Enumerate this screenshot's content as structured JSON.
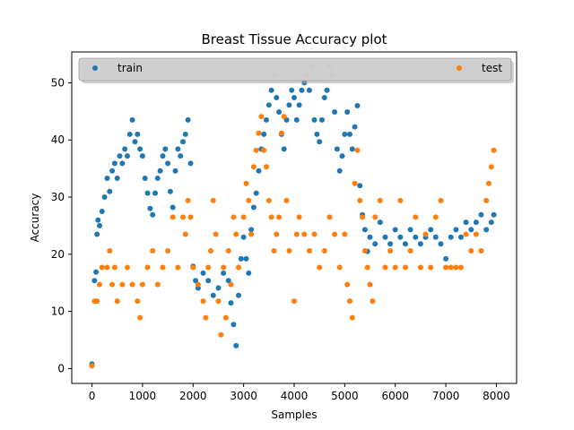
{
  "chart_data": {
    "type": "scatter",
    "title": "Breast Tissue Accuracy plot",
    "xlabel": "Samples",
    "ylabel": "Accuracy",
    "xlim": [
      -400,
      8400
    ],
    "ylim": [
      -2.6,
      55.4
    ],
    "xticks": [
      0,
      1000,
      2000,
      3000,
      4000,
      5000,
      6000,
      7000,
      8000
    ],
    "yticks": [
      0,
      10,
      20,
      30,
      40,
      50
    ],
    "legend": {
      "placement": "top",
      "entries": [
        "train",
        "test"
      ]
    },
    "grid": false,
    "series": [
      {
        "name": "train",
        "color": "#1f77b4",
        "points": [
          [
            0,
            0.8
          ],
          [
            0,
            0.5
          ],
          [
            50,
            15.4
          ],
          [
            80,
            16.9
          ],
          [
            100,
            23.5
          ],
          [
            120,
            26
          ],
          [
            150,
            25
          ],
          [
            200,
            27.5
          ],
          [
            250,
            30
          ],
          [
            300,
            33.3
          ],
          [
            350,
            31
          ],
          [
            400,
            34.6
          ],
          [
            450,
            35.9
          ],
          [
            500,
            33.3
          ],
          [
            550,
            37.2
          ],
          [
            600,
            35.9
          ],
          [
            650,
            38.4
          ],
          [
            700,
            37.2
          ],
          [
            750,
            41
          ],
          [
            800,
            43.5
          ],
          [
            850,
            39.7
          ],
          [
            900,
            41
          ],
          [
            950,
            38.4
          ],
          [
            1000,
            37.2
          ],
          [
            1050,
            33.3
          ],
          [
            1100,
            30.7
          ],
          [
            1150,
            28
          ],
          [
            1200,
            26.9
          ],
          [
            1250,
            30.7
          ],
          [
            1300,
            33.3
          ],
          [
            1350,
            34.6
          ],
          [
            1400,
            37.2
          ],
          [
            1450,
            38.4
          ],
          [
            1500,
            35.9
          ],
          [
            1550,
            31
          ],
          [
            1600,
            28.2
          ],
          [
            1650,
            34.6
          ],
          [
            1700,
            38.4
          ],
          [
            1750,
            37.2
          ],
          [
            1800,
            39.7
          ],
          [
            1850,
            41
          ],
          [
            1900,
            43.5
          ],
          [
            1950,
            35.9
          ],
          [
            2000,
            17.9
          ],
          [
            2050,
            15.4
          ],
          [
            2100,
            14.1
          ],
          [
            2200,
            16.7
          ],
          [
            2300,
            15.4
          ],
          [
            2400,
            12.8
          ],
          [
            2500,
            14.1
          ],
          [
            2600,
            16.7
          ],
          [
            2700,
            15.4
          ],
          [
            2750,
            11.5
          ],
          [
            2800,
            7.7
          ],
          [
            2850,
            4.0
          ],
          [
            2900,
            12.8
          ],
          [
            2950,
            19.2
          ],
          [
            3000,
            23
          ],
          [
            3050,
            19.2
          ],
          [
            3100,
            16.7
          ],
          [
            3150,
            24.3
          ],
          [
            3200,
            28.2
          ],
          [
            3250,
            30.7
          ],
          [
            3300,
            34.6
          ],
          [
            3350,
            38.4
          ],
          [
            3400,
            41
          ],
          [
            3450,
            43.5
          ],
          [
            3500,
            46.1
          ],
          [
            3550,
            48.7
          ],
          [
            3600,
            51.3
          ],
          [
            3650,
            47.4
          ],
          [
            3700,
            44.9
          ],
          [
            3750,
            41
          ],
          [
            3800,
            38.4
          ],
          [
            3850,
            43.5
          ],
          [
            3900,
            46.1
          ],
          [
            3950,
            48.7
          ],
          [
            4000,
            47.4
          ],
          [
            4050,
            43.5
          ],
          [
            4100,
            46.1
          ],
          [
            4150,
            48.7
          ],
          [
            4200,
            50
          ],
          [
            4250,
            51.3
          ],
          [
            4300,
            48.7
          ],
          [
            4350,
            53
          ],
          [
            4400,
            43.5
          ],
          [
            4450,
            41
          ],
          [
            4500,
            39.7
          ],
          [
            4550,
            43.5
          ],
          [
            4600,
            47.4
          ],
          [
            4650,
            48.7
          ],
          [
            4700,
            53
          ],
          [
            4750,
            51.3
          ],
          [
            4800,
            44.9
          ],
          [
            4850,
            38.4
          ],
          [
            4900,
            34.6
          ],
          [
            4950,
            37.2
          ],
          [
            5000,
            41
          ],
          [
            5050,
            44.9
          ],
          [
            5100,
            41
          ],
          [
            5150,
            38.4
          ],
          [
            5200,
            42.3
          ],
          [
            5250,
            46
          ],
          [
            5300,
            32
          ],
          [
            5350,
            26.9
          ],
          [
            5400,
            24.3
          ],
          [
            5450,
            20.5
          ],
          [
            5500,
            23
          ],
          [
            5600,
            21.8
          ],
          [
            5700,
            25.6
          ],
          [
            5800,
            23
          ],
          [
            5900,
            21.8
          ],
          [
            6000,
            24.3
          ],
          [
            6100,
            23
          ],
          [
            6200,
            21.8
          ],
          [
            6300,
            24.3
          ],
          [
            6400,
            23
          ],
          [
            6500,
            21.8
          ],
          [
            6600,
            23
          ],
          [
            6700,
            24.3
          ],
          [
            6800,
            23
          ],
          [
            6900,
            21.8
          ],
          [
            7000,
            19.2
          ],
          [
            7100,
            23
          ],
          [
            7200,
            24.3
          ],
          [
            7300,
            23
          ],
          [
            7400,
            25.6
          ],
          [
            7500,
            24.3
          ],
          [
            7600,
            25.6
          ],
          [
            7700,
            26.9
          ],
          [
            7800,
            24.3
          ],
          [
            7900,
            25.6
          ],
          [
            7950,
            26.9
          ]
        ]
      },
      {
        "name": "test",
        "color": "#ff7f0e",
        "points": [
          [
            0,
            0.5
          ],
          [
            50,
            11.8
          ],
          [
            100,
            11.8
          ],
          [
            150,
            14.7
          ],
          [
            200,
            17.7
          ],
          [
            300,
            17.7
          ],
          [
            350,
            20.6
          ],
          [
            400,
            14.7
          ],
          [
            450,
            17.7
          ],
          [
            500,
            11.8
          ],
          [
            600,
            14.7
          ],
          [
            700,
            17.7
          ],
          [
            800,
            14.7
          ],
          [
            900,
            11.8
          ],
          [
            950,
            8.9
          ],
          [
            1000,
            14.7
          ],
          [
            1100,
            17.7
          ],
          [
            1200,
            20.6
          ],
          [
            1300,
            14.7
          ],
          [
            1400,
            17.7
          ],
          [
            1500,
            20.6
          ],
          [
            1600,
            26.5
          ],
          [
            1700,
            17.7
          ],
          [
            1800,
            26.5
          ],
          [
            1850,
            23.5
          ],
          [
            1900,
            29.4
          ],
          [
            1950,
            26.5
          ],
          [
            2000,
            17.7
          ],
          [
            2100,
            14.7
          ],
          [
            2200,
            11.8
          ],
          [
            2250,
            8.9
          ],
          [
            2300,
            17.7
          ],
          [
            2350,
            20.6
          ],
          [
            2400,
            29.4
          ],
          [
            2450,
            23.5
          ],
          [
            2500,
            11.8
          ],
          [
            2550,
            5.9
          ],
          [
            2600,
            17.7
          ],
          [
            2650,
            8.9
          ],
          [
            2700,
            20.6
          ],
          [
            2750,
            14.7
          ],
          [
            2800,
            26.5
          ],
          [
            2850,
            23.5
          ],
          [
            2900,
            17.7
          ],
          [
            3000,
            26.5
          ],
          [
            3050,
            32.4
          ],
          [
            3100,
            29.4
          ],
          [
            3150,
            23.5
          ],
          [
            3200,
            35.3
          ],
          [
            3250,
            38.2
          ],
          [
            3300,
            41.2
          ],
          [
            3350,
            44.1
          ],
          [
            3400,
            38.2
          ],
          [
            3450,
            35.3
          ],
          [
            3500,
            29.4
          ],
          [
            3550,
            26.5
          ],
          [
            3600,
            20.6
          ],
          [
            3650,
            23.5
          ],
          [
            3700,
            26.5
          ],
          [
            3750,
            41.2
          ],
          [
            3800,
            44.1
          ],
          [
            3850,
            29.4
          ],
          [
            3900,
            20.6
          ],
          [
            4000,
            11.8
          ],
          [
            4050,
            23.5
          ],
          [
            4100,
            26.5
          ],
          [
            4200,
            23.5
          ],
          [
            4300,
            20.6
          ],
          [
            4400,
            23.5
          ],
          [
            4500,
            17.7
          ],
          [
            4600,
            20.6
          ],
          [
            4700,
            26.5
          ],
          [
            4800,
            23.5
          ],
          [
            4900,
            17.7
          ],
          [
            5000,
            23.5
          ],
          [
            5050,
            14.7
          ],
          [
            5100,
            11.8
          ],
          [
            5150,
            8.9
          ],
          [
            5200,
            32.4
          ],
          [
            5250,
            38.2
          ],
          [
            5300,
            29.4
          ],
          [
            5350,
            26.5
          ],
          [
            5400,
            20.6
          ],
          [
            5450,
            17.7
          ],
          [
            5500,
            14.7
          ],
          [
            5550,
            11.8
          ],
          [
            5600,
            26.5
          ],
          [
            5700,
            29.4
          ],
          [
            5800,
            17.7
          ],
          [
            5900,
            20.6
          ],
          [
            6000,
            17.7
          ],
          [
            6100,
            29.4
          ],
          [
            6200,
            17.7
          ],
          [
            6300,
            20.6
          ],
          [
            6400,
            26.5
          ],
          [
            6500,
            17.7
          ],
          [
            6600,
            23.5
          ],
          [
            6700,
            17.7
          ],
          [
            6800,
            26.5
          ],
          [
            6900,
            29.4
          ],
          [
            7000,
            17.7
          ],
          [
            7100,
            17.7
          ],
          [
            7200,
            17.7
          ],
          [
            7300,
            17.7
          ],
          [
            7400,
            23.5
          ],
          [
            7500,
            20.6
          ],
          [
            7600,
            23.5
          ],
          [
            7700,
            20.6
          ],
          [
            7800,
            29.4
          ],
          [
            7850,
            32.4
          ],
          [
            7900,
            35.3
          ],
          [
            7950,
            38.2
          ]
        ]
      }
    ]
  }
}
